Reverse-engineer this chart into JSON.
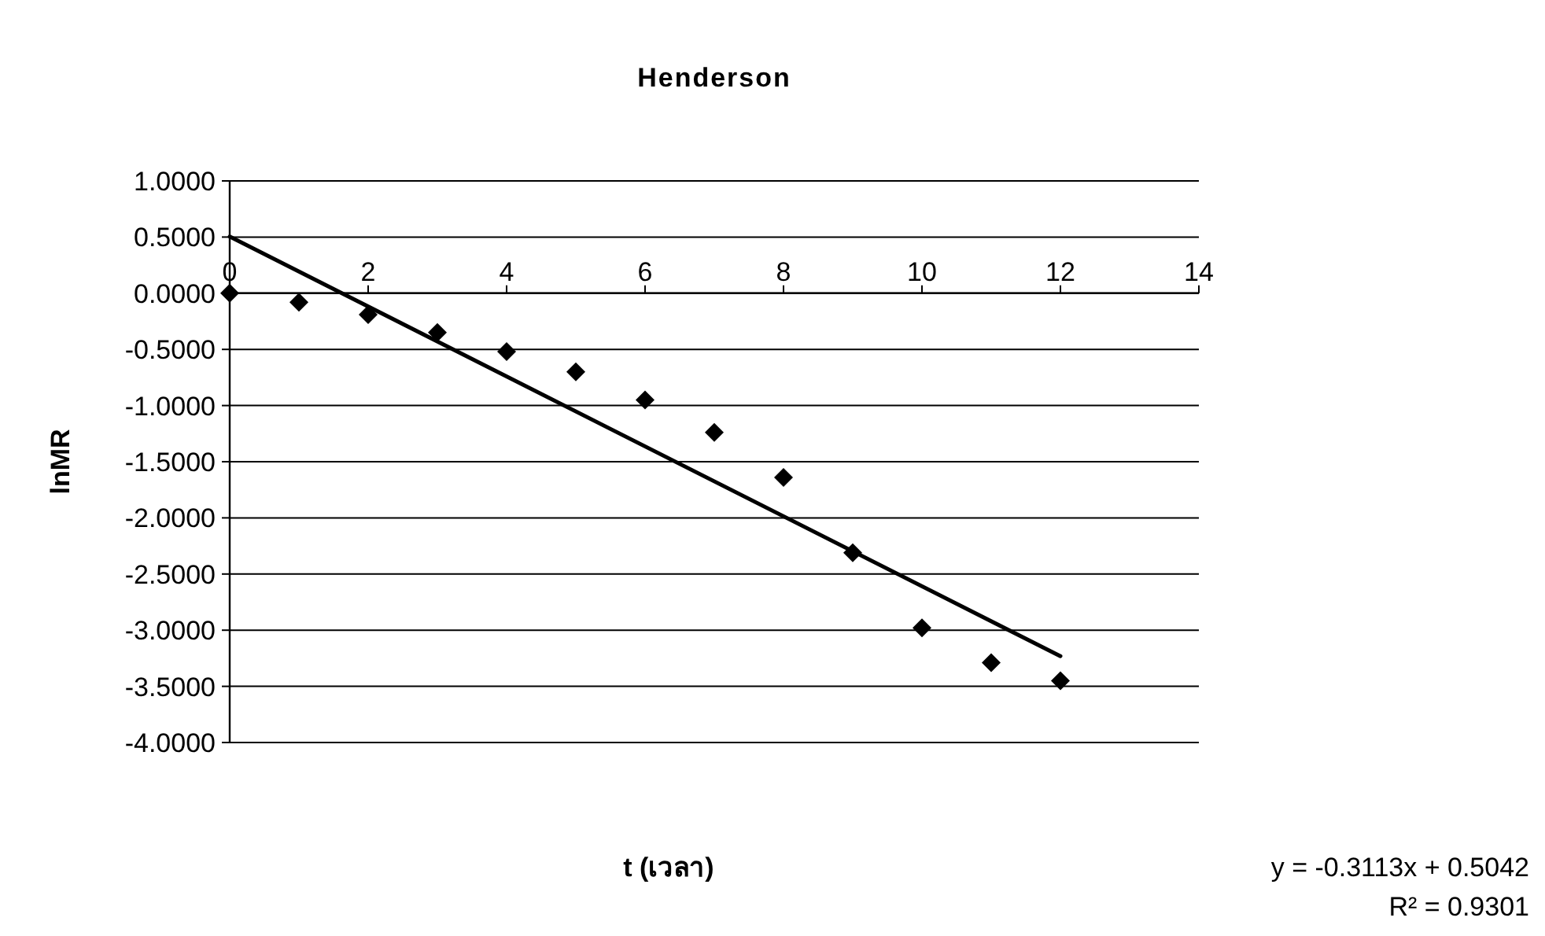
{
  "chart_data": {
    "type": "scatter",
    "title": "Henderson",
    "xlabel": "t (เวลา)",
    "ylabel": "lnMR",
    "x": [
      0,
      1,
      2,
      3,
      4,
      5,
      6,
      7,
      8,
      9,
      10,
      11,
      12
    ],
    "series": [
      {
        "type": "scatter",
        "color": "#000000",
        "marker": "diamond",
        "values": [
          0,
          -0.08,
          -0.19,
          -0.35,
          -0.52,
          -0.7,
          -0.95,
          -1.24,
          -1.64,
          -2.31,
          -2.98,
          -3.29,
          -3.45
        ]
      },
      {
        "type": "line",
        "color": "#000000",
        "marker": "none",
        "line_style": "solid",
        "x": [
          0,
          12
        ],
        "values": [
          0.5042,
          -3.2314
        ]
      }
    ],
    "xlim": [
      0,
      14
    ],
    "ylim": [
      -4,
      1
    ],
    "xticks": [
      0,
      2,
      4,
      6,
      8,
      10,
      12,
      14
    ],
    "yticks": [
      {
        "value": 1,
        "label": "1.0000"
      },
      {
        "value": 0.5,
        "label": "0.5000"
      },
      {
        "value": 0,
        "label": "0.0000"
      },
      {
        "value": -0.5,
        "label": "-0.5000"
      },
      {
        "value": -1,
        "label": "-1.0000"
      },
      {
        "value": -1.5,
        "label": "-1.5000"
      },
      {
        "value": -2,
        "label": "-2.0000"
      },
      {
        "value": -2.5,
        "label": "-2.5000"
      },
      {
        "value": -3,
        "label": "-3.0000"
      },
      {
        "value": -3.5,
        "label": "-3.5000"
      },
      {
        "value": -4,
        "label": "-4.0000"
      }
    ],
    "grid": "y",
    "annotations": [
      "y = -0.3113x + 0.5042",
      "R² = 0.9301"
    ]
  }
}
